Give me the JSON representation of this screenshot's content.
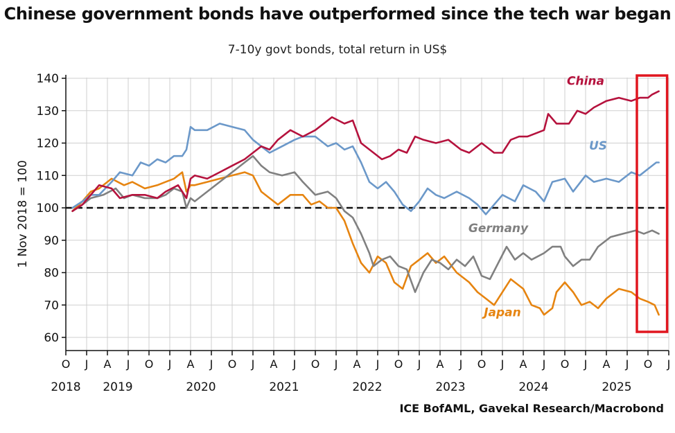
{
  "chart_data": {
    "type": "line",
    "title": "Chinese government bonds have outperformed since the tech war began",
    "subtitle": "7-10y govt bonds, total return in US$",
    "ylabel": "1 Nov 2018 = 100",
    "xlabel": "",
    "ylim": [
      60,
      140
    ],
    "yticks": [
      60,
      70,
      80,
      90,
      100,
      110,
      120,
      130,
      140
    ],
    "xlim": [
      2018.75,
      2026.0
    ],
    "x_tick_labels": [
      "O",
      "J",
      "A",
      "J",
      "O",
      "J",
      "A",
      "J",
      "O",
      "J",
      "A",
      "J",
      "O",
      "J",
      "A",
      "J",
      "O",
      "J",
      "A",
      "J",
      "O",
      "J",
      "A",
      "J",
      "O",
      "J",
      "A",
      "J",
      "O",
      "J"
    ],
    "year_labels": [
      "2018",
      "2019",
      "2020",
      "2021",
      "2022",
      "2023",
      "2024",
      "2025"
    ],
    "grid": true,
    "reference_line": {
      "y": 100,
      "style": "dashed",
      "color": "#111111"
    },
    "highlight_box": {
      "x_range": [
        2025.65,
        2025.98
      ],
      "color": "#e0161f"
    },
    "source": "ICE BofAML, Gavekal Research/Macrobond",
    "series": [
      {
        "name": "China",
        "color": "#b5123d",
        "x": [
          2018.83,
          2018.95,
          2019.05,
          2019.15,
          2019.3,
          2019.4,
          2019.55,
          2019.7,
          2019.85,
          2019.95,
          2020.1,
          2020.2,
          2020.25,
          2020.3,
          2020.45,
          2020.6,
          2020.75,
          2020.9,
          2021.0,
          2021.1,
          2021.2,
          2021.3,
          2021.45,
          2021.6,
          2021.75,
          2021.9,
          2021.95,
          2022.1,
          2022.2,
          2022.3,
          2022.45,
          2022.55,
          2022.65,
          2022.75,
          2022.85,
          2022.95,
          2023.05,
          2023.2,
          2023.35,
          2023.5,
          2023.6,
          2023.75,
          2023.9,
          2024.0,
          2024.1,
          2024.2,
          2024.3,
          2024.5,
          2024.55,
          2024.65,
          2024.8,
          2024.9,
          2025.0,
          2025.1,
          2025.25,
          2025.4,
          2025.55,
          2025.65,
          2025.75,
          2025.8,
          2025.88
        ],
        "y": [
          99,
          101,
          104,
          107,
          106,
          103,
          104,
          104,
          103,
          105,
          107,
          103,
          109,
          110,
          109,
          111,
          113,
          115,
          117,
          119,
          118,
          121,
          124,
          122,
          124,
          127,
          128,
          126,
          127,
          120,
          117,
          115,
          116,
          118,
          117,
          122,
          121,
          120,
          121,
          118,
          117,
          120,
          117,
          117,
          121,
          122,
          122,
          124,
          129,
          126,
          126,
          130,
          129,
          131,
          133,
          134,
          133,
          134,
          134,
          135,
          136
        ]
      },
      {
        "name": "US",
        "color": "#6b98c9",
        "x": [
          2018.83,
          2018.95,
          2019.05,
          2019.15,
          2019.3,
          2019.4,
          2019.55,
          2019.65,
          2019.75,
          2019.85,
          2019.95,
          2020.05,
          2020.15,
          2020.2,
          2020.25,
          2020.3,
          2020.45,
          2020.6,
          2020.75,
          2020.9,
          2021.0,
          2021.1,
          2021.2,
          2021.35,
          2021.5,
          2021.6,
          2021.75,
          2021.85,
          2021.9,
          2022.0,
          2022.1,
          2022.2,
          2022.3,
          2022.4,
          2022.5,
          2022.6,
          2022.7,
          2022.8,
          2022.9,
          2023.0,
          2023.1,
          2023.2,
          2023.3,
          2023.45,
          2023.6,
          2023.7,
          2023.8,
          2023.9,
          2024.0,
          2024.15,
          2024.25,
          2024.4,
          2024.5,
          2024.6,
          2024.75,
          2024.85,
          2025.0,
          2025.1,
          2025.25,
          2025.4,
          2025.55,
          2025.65,
          2025.75,
          2025.85,
          2025.88
        ],
        "y": [
          100,
          102,
          104,
          104,
          108,
          111,
          110,
          114,
          113,
          115,
          114,
          116,
          116,
          118,
          125,
          124,
          124,
          126,
          125,
          124,
          121,
          119,
          117,
          119,
          121,
          122,
          122,
          120,
          119,
          120,
          118,
          119,
          114,
          108,
          106,
          108,
          105,
          101,
          99,
          102,
          106,
          104,
          103,
          105,
          103,
          101,
          98,
          101,
          104,
          102,
          107,
          105,
          102,
          108,
          109,
          105,
          110,
          108,
          109,
          108,
          111,
          110,
          112,
          114,
          114
        ]
      },
      {
        "name": "Germany",
        "color": "#808080",
        "x": [
          2018.83,
          2018.95,
          2019.05,
          2019.2,
          2019.35,
          2019.45,
          2019.55,
          2019.7,
          2019.85,
          2019.95,
          2020.05,
          2020.15,
          2020.2,
          2020.25,
          2020.3,
          2020.45,
          2020.6,
          2020.75,
          2020.9,
          2021.0,
          2021.1,
          2021.2,
          2021.35,
          2021.5,
          2021.6,
          2021.75,
          2021.9,
          2022.0,
          2022.1,
          2022.2,
          2022.3,
          2022.4,
          2022.45,
          2022.55,
          2022.65,
          2022.75,
          2022.85,
          2022.95,
          2023.05,
          2023.15,
          2023.25,
          2023.35,
          2023.45,
          2023.55,
          2023.65,
          2023.75,
          2023.85,
          2023.95,
          2024.05,
          2024.15,
          2024.25,
          2024.35,
          2024.5,
          2024.6,
          2024.7,
          2024.75,
          2024.85,
          2024.95,
          2025.05,
          2025.15,
          2025.3,
          2025.45,
          2025.6,
          2025.7,
          2025.8,
          2025.88
        ],
        "y": [
          99,
          101,
          103,
          104,
          106,
          103,
          104,
          103,
          103,
          104,
          106,
          105,
          100,
          103,
          102,
          105,
          108,
          111,
          114,
          116,
          113,
          111,
          110,
          111,
          108,
          104,
          105,
          103,
          99,
          97,
          92,
          86,
          82,
          84,
          85,
          82,
          81,
          74,
          80,
          84,
          83,
          81,
          84,
          82,
          85,
          79,
          78,
          83,
          88,
          84,
          86,
          84,
          86,
          88,
          88,
          85,
          82,
          84,
          84,
          88,
          91,
          92,
          93,
          92,
          93,
          92
        ]
      },
      {
        "name": "Japan",
        "color": "#e68410",
        "x": [
          2018.83,
          2018.95,
          2019.05,
          2019.15,
          2019.3,
          2019.45,
          2019.55,
          2019.7,
          2019.85,
          2019.95,
          2020.05,
          2020.15,
          2020.2,
          2020.25,
          2020.3,
          2020.45,
          2020.6,
          2020.75,
          2020.9,
          2021.0,
          2021.1,
          2021.2,
          2021.3,
          2021.45,
          2021.6,
          2021.7,
          2021.8,
          2021.9,
          2022.0,
          2022.1,
          2022.2,
          2022.3,
          2022.4,
          2022.5,
          2022.6,
          2022.7,
          2022.8,
          2022.9,
          2023.0,
          2023.1,
          2023.2,
          2023.3,
          2023.45,
          2023.6,
          2023.7,
          2023.8,
          2023.9,
          2024.0,
          2024.1,
          2024.25,
          2024.35,
          2024.45,
          2024.5,
          2024.6,
          2024.65,
          2024.75,
          2024.85,
          2024.95,
          2025.05,
          2025.15,
          2025.25,
          2025.4,
          2025.55,
          2025.65,
          2025.75,
          2025.83,
          2025.88
        ],
        "y": [
          99,
          102,
          105,
          106,
          109,
          107,
          108,
          106,
          107,
          108,
          109,
          111,
          105,
          107,
          107,
          108,
          109,
          110,
          111,
          110,
          105,
          103,
          101,
          104,
          104,
          101,
          102,
          100,
          100,
          96,
          89,
          83,
          80,
          85,
          83,
          77,
          75,
          82,
          84,
          86,
          83,
          85,
          80,
          77,
          74,
          72,
          70,
          74,
          78,
          75,
          70,
          69,
          67,
          69,
          74,
          77,
          74,
          70,
          71,
          69,
          72,
          75,
          74,
          72,
          71,
          70,
          67
        ]
      }
    ],
    "labels": {
      "China": "China",
      "US": "US",
      "Germany": "Germany",
      "Japan": "Japan"
    }
  }
}
